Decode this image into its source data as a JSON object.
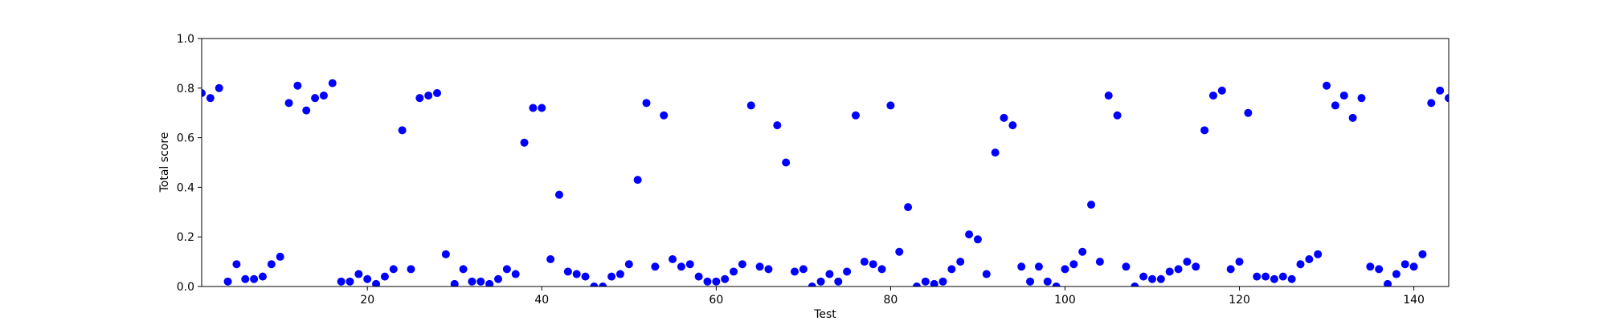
{
  "chart_data": {
    "type": "scatter",
    "title": "",
    "xlabel": "Test",
    "ylabel": "Total score",
    "xlim": [
      1,
      144
    ],
    "ylim": [
      0.0,
      1.0
    ],
    "x_ticks": [
      20,
      40,
      60,
      80,
      100,
      120,
      140
    ],
    "y_ticks": [
      0.0,
      0.2,
      0.4,
      0.6,
      0.8,
      1.0
    ],
    "x_tick_labels": [
      "20",
      "40",
      "60",
      "80",
      "100",
      "120",
      "140"
    ],
    "y_tick_labels": [
      "0.0",
      "0.2",
      "0.4",
      "0.6",
      "0.8",
      "1.0"
    ],
    "grid": false,
    "marker_color": "#0000ff",
    "series": [
      {
        "x": [
          1,
          2,
          3,
          4,
          5,
          6,
          7,
          8,
          9,
          10,
          11,
          12,
          13,
          14,
          15,
          16,
          17,
          18,
          19,
          20,
          21,
          22,
          23,
          24,
          25,
          26,
          27,
          28,
          29,
          30,
          31,
          32,
          33,
          34,
          35,
          36,
          37,
          38,
          39,
          40,
          41,
          42,
          43,
          44,
          45,
          46,
          47,
          48,
          49,
          50,
          51,
          52,
          53,
          54,
          55,
          56,
          57,
          58,
          59,
          60,
          61,
          62,
          63,
          64,
          65,
          66,
          67,
          68,
          69,
          70,
          71,
          72,
          73,
          74,
          75,
          76,
          77,
          78,
          79,
          80,
          81,
          82,
          83,
          84,
          85,
          86,
          87,
          88,
          89,
          90,
          91,
          92,
          93,
          94,
          95,
          96,
          97,
          98,
          99,
          100,
          101,
          102,
          103,
          104,
          105,
          106,
          107,
          108,
          109,
          110,
          111,
          112,
          113,
          114,
          115,
          116,
          117,
          118,
          119,
          120,
          121,
          122,
          123,
          124,
          125,
          126,
          127,
          128,
          129,
          130,
          131,
          132,
          133,
          134,
          135,
          136,
          137,
          138,
          139,
          140,
          141,
          142,
          143,
          144
        ],
        "y": [
          0.78,
          0.76,
          0.8,
          0.02,
          0.09,
          0.03,
          0.03,
          0.04,
          0.09,
          0.12,
          0.74,
          0.81,
          0.71,
          0.76,
          0.77,
          0.82,
          0.02,
          0.02,
          0.05,
          0.03,
          0.01,
          0.04,
          0.07,
          0.63,
          0.07,
          0.76,
          0.77,
          0.78,
          0.13,
          0.01,
          0.07,
          0.02,
          0.02,
          0.01,
          0.03,
          0.07,
          0.05,
          0.58,
          0.72,
          0.72,
          0.11,
          0.37,
          0.06,
          0.05,
          0.04,
          0.0,
          0.0,
          0.04,
          0.05,
          0.09,
          0.43,
          0.74,
          0.08,
          0.69,
          0.11,
          0.08,
          0.09,
          0.04,
          0.02,
          0.02,
          0.03,
          0.06,
          0.09,
          0.73,
          0.08,
          0.07,
          0.65,
          0.5,
          0.06,
          0.07,
          0.0,
          0.02,
          0.05,
          0.02,
          0.06,
          0.69,
          0.1,
          0.09,
          0.07,
          0.73,
          0.14,
          0.32,
          0.0,
          0.02,
          0.01,
          0.02,
          0.07,
          0.1,
          0.21,
          0.19,
          0.05,
          0.54,
          0.68,
          0.65,
          0.08,
          0.02,
          0.08,
          0.02,
          0.0,
          0.07,
          0.09,
          0.14,
          0.33,
          0.1,
          0.77,
          0.69,
          0.08,
          0.0,
          0.04,
          0.03,
          0.03,
          0.06,
          0.07,
          0.1,
          0.08,
          0.63,
          0.77,
          0.79,
          0.07,
          0.1,
          0.7,
          0.04,
          0.04,
          0.03,
          0.04,
          0.03,
          0.09,
          0.11,
          0.13,
          0.81,
          0.73,
          0.77,
          0.68,
          0.76,
          0.08,
          0.07,
          0.01,
          0.05,
          0.09,
          0.08,
          0.13,
          0.74,
          0.79,
          0.76
        ]
      }
    ]
  }
}
